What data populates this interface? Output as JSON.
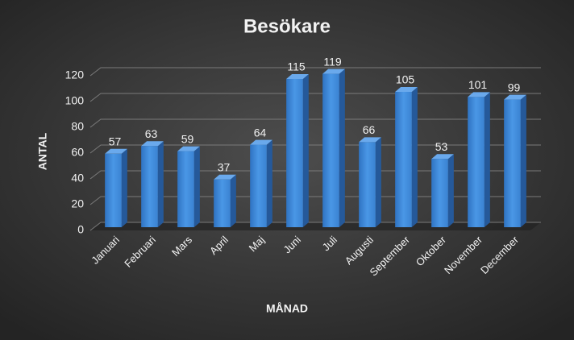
{
  "chart_data": {
    "type": "bar",
    "title": "Besökare",
    "x_label": "MÅNAD",
    "y_label": "ANTAL",
    "categories": [
      "Januari",
      "Februari",
      "Mars",
      "April",
      "Maj",
      "Juni",
      "Juli",
      "Augusti",
      "September",
      "Oktober",
      "November",
      "December"
    ],
    "values": [
      57,
      63,
      59,
      37,
      64,
      115,
      119,
      66,
      105,
      53,
      101,
      99
    ],
    "color": "#3f8ad8",
    "ylim": [
      0,
      120
    ],
    "yticks": [
      0,
      20,
      40,
      60,
      80,
      100,
      120
    ],
    "grid": true
  }
}
